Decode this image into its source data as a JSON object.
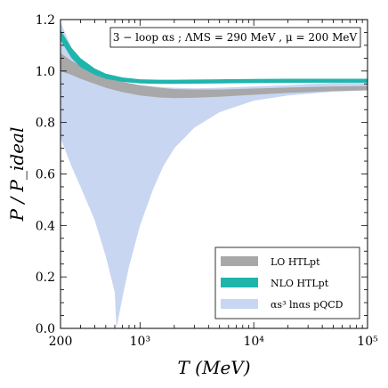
{
  "chart_data": {
    "type": "area",
    "xlabel": "T (MeV)",
    "ylabel": "P / P_ideal",
    "xscale": "log",
    "xlim": [
      200,
      100000
    ],
    "ylim": [
      0.0,
      1.2
    ],
    "grid": false,
    "legend_position": "bottom-right",
    "x_tick_labels": [
      {
        "value": 200,
        "text": "200"
      },
      {
        "value": 1000,
        "text": "10³"
      },
      {
        "value": 10000,
        "text": "10⁴"
      },
      {
        "value": 100000,
        "text": "10⁵"
      }
    ],
    "y_tick_labels": [
      {
        "value": 0.0,
        "text": "0.0"
      },
      {
        "value": 0.2,
        "text": "0.2"
      },
      {
        "value": 0.4,
        "text": "0.4"
      },
      {
        "value": 0.6,
        "text": "0.6"
      },
      {
        "value": 0.8,
        "text": "0.8"
      },
      {
        "value": 1.0,
        "text": "1.0"
      },
      {
        "value": 1.2,
        "text": "1.2"
      }
    ],
    "annotation": "3 − loop αs ;  ΛMS = 290 MeV , μ = 200 MeV",
    "bands": [
      {
        "name": "αs³ lnαs pQCD",
        "color": "#c8d6f2",
        "x": [
          200,
          250,
          300,
          400,
          500,
          600,
          620,
          700,
          800,
          1000,
          1300,
          1600,
          2000,
          3000,
          5000,
          10000,
          20000,
          50000,
          100000
        ],
        "upper": [
          1.19,
          1.09,
          1.04,
          1.0,
          0.98,
          0.965,
          0.96,
          0.955,
          0.95,
          0.945,
          0.94,
          0.937,
          0.935,
          0.933,
          0.935,
          0.94,
          0.945,
          0.955,
          0.962
        ],
        "lower": [
          0.74,
          0.63,
          0.55,
          0.42,
          0.28,
          0.14,
          0.0,
          0.12,
          0.24,
          0.4,
          0.54,
          0.63,
          0.7,
          0.78,
          0.84,
          0.885,
          0.905,
          0.92,
          0.925
        ]
      },
      {
        "name": "LO HTLpt",
        "color": "#a8a8a8",
        "x": [
          200,
          250,
          300,
          400,
          500,
          700,
          1000,
          1500,
          2000,
          3000,
          5000,
          10000,
          20000,
          50000,
          100000
        ],
        "upper": [
          1.07,
          1.04,
          1.02,
          0.99,
          0.975,
          0.958,
          0.945,
          0.935,
          0.93,
          0.928,
          0.928,
          0.932,
          0.936,
          0.94,
          0.942
        ],
        "lower": [
          1.0,
          0.985,
          0.97,
          0.95,
          0.935,
          0.918,
          0.905,
          0.897,
          0.895,
          0.896,
          0.9,
          0.908,
          0.915,
          0.922,
          0.925
        ]
      },
      {
        "name": "NLO HTLpt",
        "color": "#1fb5ad",
        "x": [
          200,
          250,
          300,
          400,
          500,
          700,
          1000,
          1500,
          2000,
          3000,
          5000,
          10000,
          20000,
          50000,
          100000
        ],
        "upper": [
          1.16,
          1.09,
          1.05,
          1.01,
          0.99,
          0.975,
          0.968,
          0.966,
          0.966,
          0.967,
          0.968,
          0.969,
          0.97,
          0.97,
          0.97
        ],
        "lower": [
          1.12,
          1.05,
          1.015,
          0.985,
          0.97,
          0.958,
          0.952,
          0.95,
          0.95,
          0.951,
          0.952,
          0.953,
          0.954,
          0.955,
          0.955
        ]
      }
    ],
    "legend": [
      {
        "label": "LO HTLpt",
        "color": "#a8a8a8"
      },
      {
        "label": "NLO HTLpt",
        "color": "#1fb5ad"
      },
      {
        "label": "αs³ lnαs  pQCD",
        "color": "#c8d6f2"
      }
    ]
  }
}
